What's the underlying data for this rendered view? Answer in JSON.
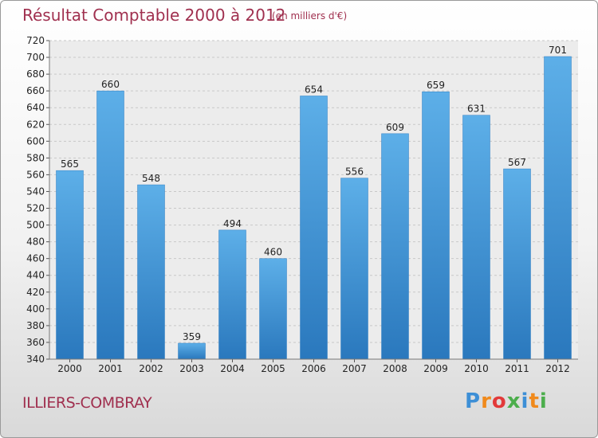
{
  "chart_data": {
    "type": "bar",
    "title": "Résultat Comptable 2000 à 2012",
    "subtitle": "(en milliers d'€)",
    "categories": [
      "2000",
      "2001",
      "2002",
      "2003",
      "2004",
      "2005",
      "2006",
      "2007",
      "2008",
      "2009",
      "2010",
      "2011",
      "2012"
    ],
    "values": [
      565,
      660,
      548,
      359,
      494,
      460,
      654,
      556,
      609,
      659,
      631,
      567,
      701
    ],
    "ylim": [
      340,
      720
    ],
    "ytick_step": 20,
    "xlabel": "",
    "ylabel": "",
    "grid": true,
    "bar_color": "#4a9ee0"
  },
  "footer": {
    "commune": "ILLIERS-COMBRAY",
    "logo_text": "Proxiti",
    "logo_colors": [
      "#3d8fd6",
      "#f08a1c",
      "#e23a3a",
      "#4cae4c",
      "#3d8fd6",
      "#f08a1c",
      "#4cae4c"
    ]
  }
}
